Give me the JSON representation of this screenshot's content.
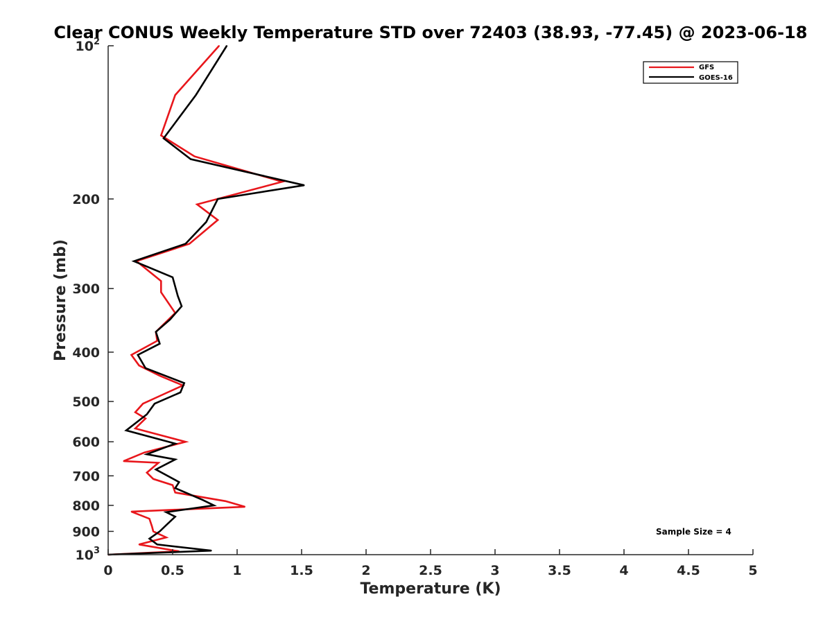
{
  "chart_data": {
    "type": "line",
    "title": "Clear CONUS Weekly Temperature STD over 72403 (38.93, -77.45) @ 2023-06-18",
    "xlabel": "Temperature (K)",
    "ylabel": "Pressure (mb)",
    "xlim": [
      0,
      5
    ],
    "ylim": [
      100,
      1000
    ],
    "y_scale": "log",
    "y_reversed": true,
    "grid": false,
    "legend_position": "top-right",
    "x_ticks": [
      {
        "value": 0,
        "label": "0"
      },
      {
        "value": 0.5,
        "label": "0.5"
      },
      {
        "value": 1,
        "label": "1"
      },
      {
        "value": 1.5,
        "label": "1.5"
      },
      {
        "value": 2,
        "label": "2"
      },
      {
        "value": 2.5,
        "label": "2.5"
      },
      {
        "value": 3,
        "label": "3"
      },
      {
        "value": 3.5,
        "label": "3.5"
      },
      {
        "value": 4,
        "label": "4"
      },
      {
        "value": 4.5,
        "label": "4.5"
      },
      {
        "value": 5,
        "label": "5"
      }
    ],
    "y_ticks": [
      {
        "value": 100,
        "base": "10",
        "exp": "2"
      },
      {
        "value": 200,
        "label": "200"
      },
      {
        "value": 300,
        "label": "300"
      },
      {
        "value": 400,
        "label": "400"
      },
      {
        "value": 500,
        "label": "500"
      },
      {
        "value": 600,
        "label": "600"
      },
      {
        "value": 700,
        "label": "700"
      },
      {
        "value": 800,
        "label": "800"
      },
      {
        "value": 900,
        "label": "900"
      },
      {
        "value": 1000,
        "base": "10",
        "exp": "3"
      }
    ],
    "series": [
      {
        "name": "GFS",
        "color": "#e8161b",
        "points": [
          [
            0.86,
            100
          ],
          [
            0.52,
            125
          ],
          [
            0.41,
            150
          ],
          [
            0.67,
            165
          ],
          [
            1.35,
            185
          ],
          [
            0.69,
            205
          ],
          [
            0.85,
            220
          ],
          [
            0.63,
            245
          ],
          [
            0.22,
            265
          ],
          [
            0.41,
            290
          ],
          [
            0.41,
            305
          ],
          [
            0.52,
            335
          ],
          [
            0.37,
            365
          ],
          [
            0.38,
            380
          ],
          [
            0.18,
            405
          ],
          [
            0.24,
            425
          ],
          [
            0.4,
            445
          ],
          [
            0.58,
            465
          ],
          [
            0.46,
            480
          ],
          [
            0.27,
            505
          ],
          [
            0.21,
            525
          ],
          [
            0.29,
            540
          ],
          [
            0.21,
            565
          ],
          [
            0.6,
            600
          ],
          [
            0.28,
            630
          ],
          [
            0.12,
            655
          ],
          [
            0.39,
            660
          ],
          [
            0.3,
            690
          ],
          [
            0.35,
            710
          ],
          [
            0.5,
            730
          ],
          [
            0.52,
            755
          ],
          [
            0.91,
            785
          ],
          [
            1.06,
            805
          ],
          [
            0.18,
            823
          ],
          [
            0.32,
            850
          ],
          [
            0.34,
            880
          ],
          [
            0.35,
            900
          ],
          [
            0.45,
            925
          ],
          [
            0.24,
            955
          ],
          [
            0.55,
            985
          ],
          [
            0.0,
            1000
          ]
        ]
      },
      {
        "name": "GOES-16",
        "color": "#000000",
        "points": [
          [
            0.92,
            100
          ],
          [
            0.68,
            125
          ],
          [
            0.43,
            152
          ],
          [
            0.64,
            167
          ],
          [
            1.52,
            188
          ],
          [
            0.85,
            200
          ],
          [
            0.76,
            222
          ],
          [
            0.6,
            245
          ],
          [
            0.2,
            265
          ],
          [
            0.5,
            285
          ],
          [
            0.54,
            310
          ],
          [
            0.57,
            325
          ],
          [
            0.48,
            345
          ],
          [
            0.37,
            365
          ],
          [
            0.4,
            385
          ],
          [
            0.23,
            405
          ],
          [
            0.29,
            430
          ],
          [
            0.59,
            460
          ],
          [
            0.56,
            480
          ],
          [
            0.36,
            505
          ],
          [
            0.3,
            530
          ],
          [
            0.14,
            570
          ],
          [
            0.52,
            605
          ],
          [
            0.3,
            635
          ],
          [
            0.52,
            650
          ],
          [
            0.37,
            680
          ],
          [
            0.55,
            720
          ],
          [
            0.52,
            740
          ],
          [
            0.73,
            780
          ],
          [
            0.82,
            800
          ],
          [
            0.45,
            825
          ],
          [
            0.52,
            842
          ],
          [
            0.45,
            875
          ],
          [
            0.4,
            900
          ],
          [
            0.32,
            930
          ],
          [
            0.38,
            955
          ],
          [
            0.8,
            982
          ],
          [
            0.0,
            1000
          ]
        ]
      }
    ],
    "annotation": "Sample Size = 4"
  }
}
